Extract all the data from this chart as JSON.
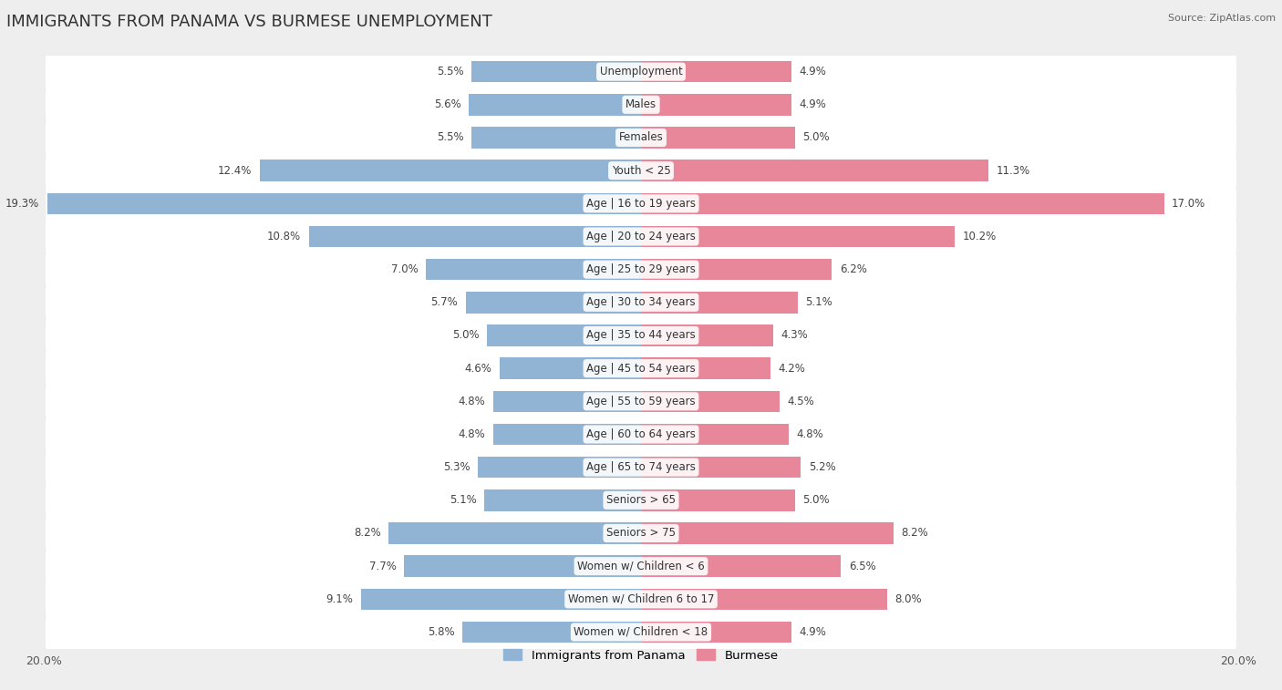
{
  "title": "IMMIGRANTS FROM PANAMA VS BURMESE UNEMPLOYMENT",
  "source": "Source: ZipAtlas.com",
  "categories": [
    "Unemployment",
    "Males",
    "Females",
    "Youth < 25",
    "Age | 16 to 19 years",
    "Age | 20 to 24 years",
    "Age | 25 to 29 years",
    "Age | 30 to 34 years",
    "Age | 35 to 44 years",
    "Age | 45 to 54 years",
    "Age | 55 to 59 years",
    "Age | 60 to 64 years",
    "Age | 65 to 74 years",
    "Seniors > 65",
    "Seniors > 75",
    "Women w/ Children < 6",
    "Women w/ Children 6 to 17",
    "Women w/ Children < 18"
  ],
  "panama_values": [
    5.5,
    5.6,
    5.5,
    12.4,
    19.3,
    10.8,
    7.0,
    5.7,
    5.0,
    4.6,
    4.8,
    4.8,
    5.3,
    5.1,
    8.2,
    7.7,
    9.1,
    5.8
  ],
  "burmese_values": [
    4.9,
    4.9,
    5.0,
    11.3,
    17.0,
    10.2,
    6.2,
    5.1,
    4.3,
    4.2,
    4.5,
    4.8,
    5.2,
    5.0,
    8.2,
    6.5,
    8.0,
    4.9
  ],
  "panama_color": "#92b4d4",
  "burmese_color": "#e8879a",
  "bg_color": "#eeeeee",
  "row_bg_color": "#ffffff",
  "axis_max": 20.0,
  "value_fontsize": 8.5,
  "label_fontsize": 8.5,
  "title_fontsize": 13,
  "legend_label_panama": "Immigrants from Panama",
  "legend_label_burmese": "Burmese"
}
